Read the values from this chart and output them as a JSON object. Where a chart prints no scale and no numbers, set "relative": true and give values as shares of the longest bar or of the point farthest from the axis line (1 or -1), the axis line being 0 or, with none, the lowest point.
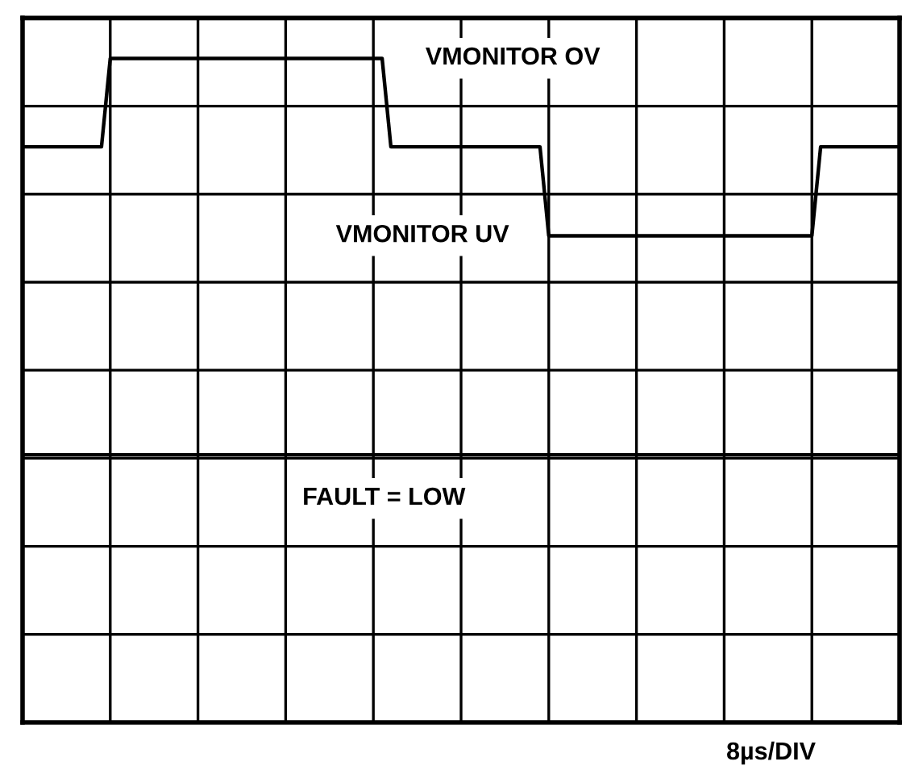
{
  "chart_data": {
    "type": "line",
    "relative": true,
    "xlabel": "8µs/DIV",
    "categories": [
      null,
      null,
      null,
      null,
      null,
      null,
      null,
      null,
      null,
      null,
      null,
      null,
      null,
      null,
      null,
      null,
      null,
      null,
      null,
      null,
      null,
      null,
      null,
      null,
      null,
      null,
      null,
      null,
      null,
      null,
      null,
      null,
      null,
      null,
      null,
      null,
      null,
      null,
      null,
      null,
      null,
      null,
      null,
      null,
      null,
      null,
      null,
      null,
      null,
      null,
      null,
      null,
      null,
      null,
      null,
      null,
      null,
      null,
      null,
      null,
      null,
      null,
      null,
      null,
      null,
      null,
      null,
      null,
      null,
      null,
      null,
      null,
      null,
      null,
      null,
      null,
      null,
      null,
      null,
      null,
      null,
      null,
      null,
      null,
      null,
      null,
      null,
      null,
      null,
      null,
      null,
      null,
      null,
      null,
      null,
      null,
      null,
      null,
      null,
      null,
      null
    ],
    "grid": true,
    "marker": "none",
    "line_style": "solid",
    "series": [
      {
        "color": "#000000",
        "values": [
          0.867,
          0.867,
          0.867,
          0.867,
          0.867,
          0.867,
          0.867,
          0.867,
          0.867,
          0.867,
          1,
          1,
          1,
          1,
          1,
          1,
          1,
          1,
          1,
          1,
          1,
          1,
          1,
          1,
          1,
          1,
          1,
          1,
          1,
          1,
          1,
          1,
          1,
          1,
          1,
          1,
          1,
          1,
          1,
          1,
          1,
          1,
          0.867,
          0.867,
          0.867,
          0.867,
          0.867,
          0.867,
          0.867,
          0.867,
          0.867,
          0.867,
          0.867,
          0.867,
          0.867,
          0.867,
          0.867,
          0.867,
          0.867,
          0.867,
          0.733,
          0.733,
          0.733,
          0.733,
          0.733,
          0.733,
          0.733,
          0.733,
          0.733,
          0.733,
          0.733,
          0.733,
          0.733,
          0.733,
          0.733,
          0.733,
          0.733,
          0.733,
          0.733,
          0.733,
          0.733,
          0.733,
          0.733,
          0.733,
          0.733,
          0.733,
          0.733,
          0.733,
          0.733,
          0.733,
          0.733,
          0.867,
          0.867,
          0.867,
          0.867,
          0.867,
          0.867,
          0.867,
          0.867,
          0.867,
          0.867
        ]
      },
      {
        "color": "#000000",
        "values": [
          0.403,
          0.403,
          0.403,
          0.403,
          0.403,
          0.403,
          0.403,
          0.403,
          0.403,
          0.403,
          0.403,
          0.403,
          0.403,
          0.403,
          0.403,
          0.403,
          0.403,
          0.403,
          0.403,
          0.403,
          0.403,
          0.403,
          0.403,
          0.403,
          0.403,
          0.403,
          0.403,
          0.403,
          0.403,
          0.403,
          0.403,
          0.403,
          0.403,
          0.403,
          0.403,
          0.403,
          0.403,
          0.403,
          0.403,
          0.403,
          0.403,
          0.403,
          0.403,
          0.403,
          0.403,
          0.403,
          0.403,
          0.403,
          0.403,
          0.403,
          0.403,
          0.403,
          0.403,
          0.403,
          0.403,
          0.403,
          0.403,
          0.403,
          0.403,
          0.403,
          0.403,
          0.403,
          0.403,
          0.403,
          0.403,
          0.403,
          0.403,
          0.403,
          0.403,
          0.403,
          0.403,
          0.403,
          0.403,
          0.403,
          0.403,
          0.403,
          0.403,
          0.403,
          0.403,
          0.403,
          0.403,
          0.403,
          0.403,
          0.403,
          0.403,
          0.403,
          0.403,
          0.403,
          0.403,
          0.403,
          0.403,
          0.403,
          0.403,
          0.403,
          0.403,
          0.403,
          0.403,
          0.403,
          0.403,
          0.403,
          0.403
        ]
      }
    ],
    "annotations": [
      "VMONITOR OV",
      "VMONITOR UV",
      "FAULT = LOW"
    ]
  }
}
